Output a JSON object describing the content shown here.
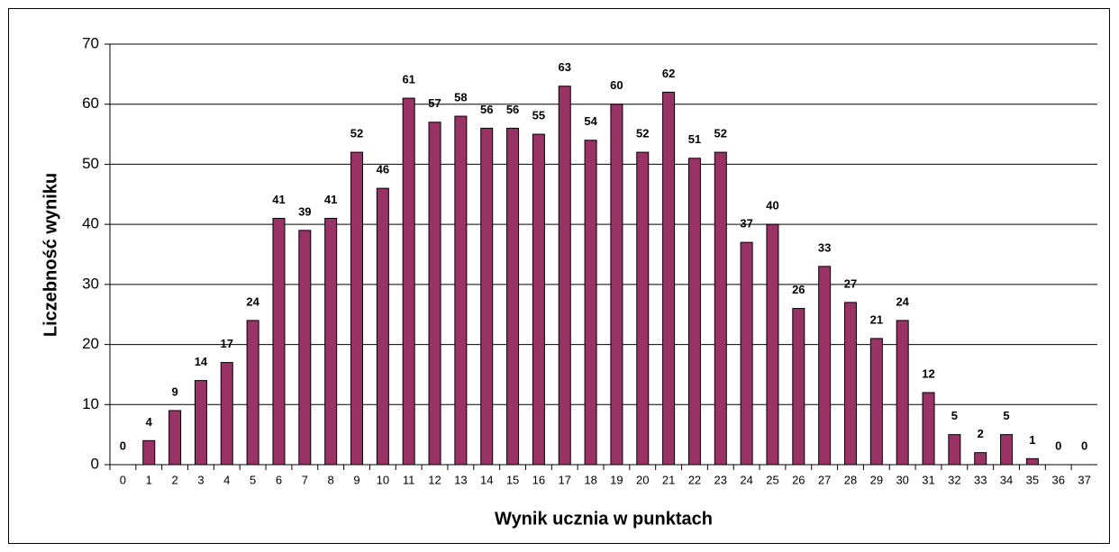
{
  "chart_data": {
    "type": "bar",
    "x_label": "Wynik ucznia w punktach",
    "y_label": "Liczebność wyniku",
    "categories": [
      "0",
      "1",
      "2",
      "3",
      "4",
      "5",
      "6",
      "7",
      "8",
      "9",
      "10",
      "11",
      "12",
      "13",
      "14",
      "15",
      "16",
      "17",
      "18",
      "19",
      "20",
      "21",
      "22",
      "23",
      "24",
      "25",
      "26",
      "27",
      "28",
      "29",
      "30",
      "31",
      "32",
      "33",
      "34",
      "35",
      "36",
      "37"
    ],
    "values": [
      0,
      4,
      9,
      14,
      17,
      24,
      41,
      39,
      41,
      52,
      46,
      61,
      57,
      58,
      56,
      56,
      55,
      63,
      54,
      60,
      52,
      62,
      51,
      52,
      37,
      40,
      26,
      33,
      27,
      21,
      24,
      12,
      5,
      2,
      5,
      1,
      0,
      0
    ],
    "color": "#993366",
    "ylim": [
      0,
      70
    ],
    "yticks": [
      0,
      10,
      20,
      30,
      40,
      50,
      60,
      70
    ],
    "grid": true
  }
}
